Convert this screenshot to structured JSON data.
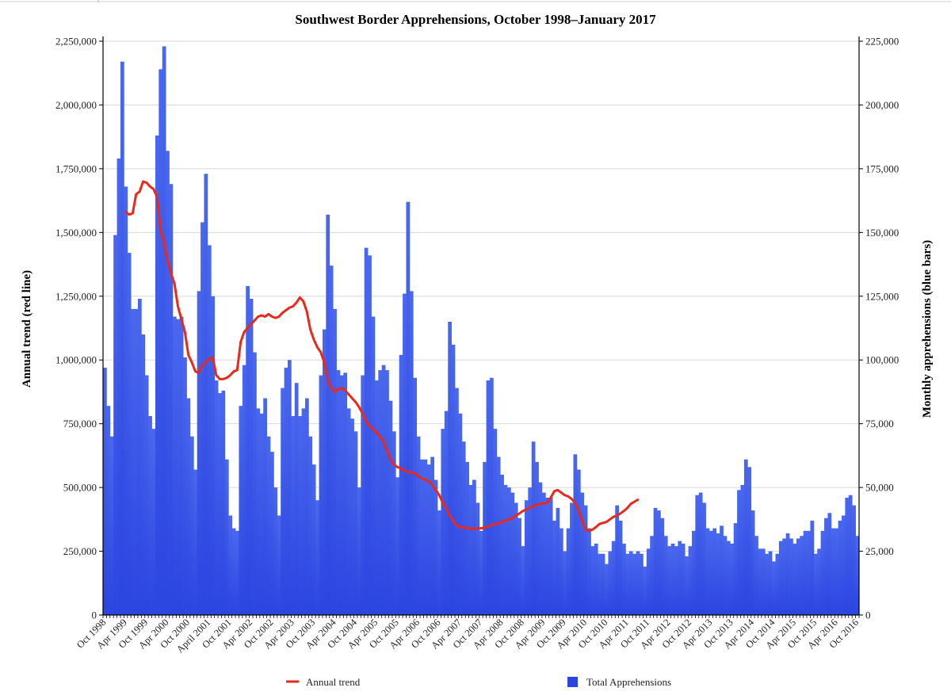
{
  "chart_data": {
    "type": "bar",
    "title": "Southwest Border Apprehensions, October 1998–January 2017",
    "ylabel_left": "Annual trend (red line)",
    "ylabel_right": "Monthly apprehensions (blue bars)",
    "ylim_left": [
      0,
      2250000
    ],
    "ylim_right": [
      0,
      225000
    ],
    "yticks_left": [
      "0",
      "250,000",
      "500,000",
      "750,000",
      "1,000,000",
      "1,250,000",
      "1,500,000",
      "1,750,000",
      "2,000,000",
      "2,250,000"
    ],
    "yticks_right": [
      "0",
      "25,000",
      "50,000",
      "75,000",
      "100,000",
      "125,000",
      "150,000",
      "175,000",
      "200,000",
      "225,000"
    ],
    "x_tick_labels": [
      "Oct 1998",
      "Apr 1999",
      "Oct 1999",
      "Apr 2000",
      "Oct 2000",
      "April 2001",
      "Oct 2001",
      "Apr 2002",
      "Oct 2002",
      "Apr 2003",
      "Oct 2003",
      "Apr 2004",
      "Oct 2004",
      "Apr 2005",
      "Oct 2005",
      "Apr 2006",
      "Oct 2006",
      "Apr 2007",
      "Oct 2007",
      "Apr 2008",
      "Oct 2008",
      "Apr 2009",
      "Oct 2009",
      "Apr 2010",
      "Oct 2010",
      "Apr 2011",
      "Oct 2011",
      "Apr 2012",
      "Oct 2012",
      "Apr 2013",
      "Oct 2013",
      "Apr 2014",
      "Oct 2014",
      "Apr 2015",
      "Oct 2015",
      "Apr 2016",
      "Oct 2016"
    ],
    "grid": true,
    "legend_position": "bottom",
    "colors": {
      "bars": "#2b45e0",
      "trend": "#e8291c"
    },
    "series": [
      {
        "name": "Total Apprehensions",
        "axis": "right",
        "type": "bar",
        "values": [
          97000,
          82000,
          70000,
          149000,
          179000,
          217000,
          168000,
          142000,
          120000,
          120000,
          124000,
          110000,
          94000,
          78000,
          73000,
          188000,
          214000,
          223000,
          182000,
          169000,
          117000,
          116000,
          117000,
          101000,
          85000,
          70000,
          57000,
          127000,
          154000,
          173000,
          145000,
          125000,
          92000,
          87000,
          88000,
          61000,
          39000,
          34000,
          33000,
          82000,
          98000,
          129000,
          124000,
          103000,
          81000,
          79000,
          85000,
          70000,
          64000,
          50000,
          39000,
          89000,
          97000,
          100000,
          78000,
          91000,
          78000,
          81000,
          85000,
          70000,
          59000,
          45000,
          94000,
          112000,
          157000,
          137000,
          120000,
          96000,
          94000,
          95000,
          81000,
          77000,
          72000,
          50000,
          94000,
          144000,
          141000,
          117000,
          92000,
          96000,
          98000,
          96000,
          84000,
          72000,
          54000,
          102000,
          126000,
          162000,
          127000,
          93000,
          70000,
          61000,
          61000,
          59000,
          62000,
          53000,
          41000,
          73000,
          80000,
          115000,
          106000,
          89000,
          79000,
          68000,
          60000,
          51000,
          53000,
          44000,
          33000,
          60000,
          92000,
          93000,
          73000,
          62000,
          55000,
          51000,
          50000,
          48000,
          44000,
          38000,
          27000,
          45000,
          50000,
          68000,
          60000,
          52000,
          48000,
          46000,
          46000,
          37000,
          42000,
          34000,
          25000,
          34000,
          44000,
          63000,
          57000,
          48000,
          43000,
          34000,
          27000,
          28000,
          24000,
          24000,
          20000,
          25000,
          29000,
          43000,
          37000,
          28000,
          24000,
          25000,
          24000,
          25000,
          24000,
          19000,
          26000,
          31000,
          42000,
          41000,
          38000,
          31000,
          27000,
          28000,
          27000,
          29000,
          28000,
          23000,
          27000,
          33000,
          47000,
          48000,
          44000,
          34000,
          33000,
          34000,
          32000,
          35000,
          31000,
          29000,
          28000,
          36000,
          49000,
          51000,
          61000,
          58000,
          41000,
          31000,
          26000,
          26000,
          24000,
          25000,
          21000,
          24000,
          29000,
          30000,
          32000,
          30000,
          28000,
          30000,
          31000,
          33000,
          33000,
          37000,
          24000,
          26000,
          33000,
          38000,
          40000,
          34000,
          34000,
          37000,
          39000,
          46000,
          47000,
          43000,
          31000
        ]
      },
      {
        "name": "Annual trend",
        "axis": "left",
        "type": "line",
        "start_index": 6,
        "values": [
          1580000,
          1570000,
          1575000,
          1650000,
          1660000,
          1700000,
          1695000,
          1680000,
          1670000,
          1640000,
          1510000,
          1460000,
          1390000,
          1340000,
          1300000,
          1210000,
          1160000,
          1110000,
          1020000,
          990000,
          955000,
          950000,
          980000,
          990000,
          1005000,
          1010000,
          940000,
          925000,
          925000,
          930000,
          940000,
          955000,
          960000,
          1070000,
          1110000,
          1125000,
          1140000,
          1155000,
          1170000,
          1175000,
          1170000,
          1180000,
          1170000,
          1165000,
          1170000,
          1185000,
          1195000,
          1205000,
          1210000,
          1225000,
          1245000,
          1230000,
          1190000,
          1120000,
          1080000,
          1050000,
          1030000,
          990000,
          920000,
          890000,
          875000,
          885000,
          890000,
          880000,
          865000,
          850000,
          835000,
          815000,
          790000,
          760000,
          740000,
          730000,
          715000,
          700000,
          680000,
          645000,
          610000,
          590000,
          580000,
          575000,
          565000,
          560000,
          560000,
          555000,
          545000,
          535000,
          530000,
          525000,
          510000,
          490000,
          470000,
          440000,
          420000,
          390000,
          370000,
          350000,
          345000,
          343000,
          340000,
          340000,
          338000,
          340000,
          340000,
          343000,
          348000,
          352000,
          356000,
          360000,
          365000,
          370000,
          374000,
          380000,
          390000,
          398000,
          408000,
          414000,
          420000,
          428000,
          432000,
          435000,
          437000,
          440000,
          460000,
          485000,
          490000,
          480000,
          470000,
          465000,
          455000,
          440000,
          410000,
          370000,
          335000,
          330000,
          335000,
          345000,
          357000,
          361000,
          365000,
          375000,
          385000,
          390000,
          398000,
          408000,
          420000,
          436000,
          444000,
          452000
        ]
      }
    ]
  },
  "legend": {
    "trend_label": "Annual trend",
    "bars_label": "Total Apprehensions"
  }
}
